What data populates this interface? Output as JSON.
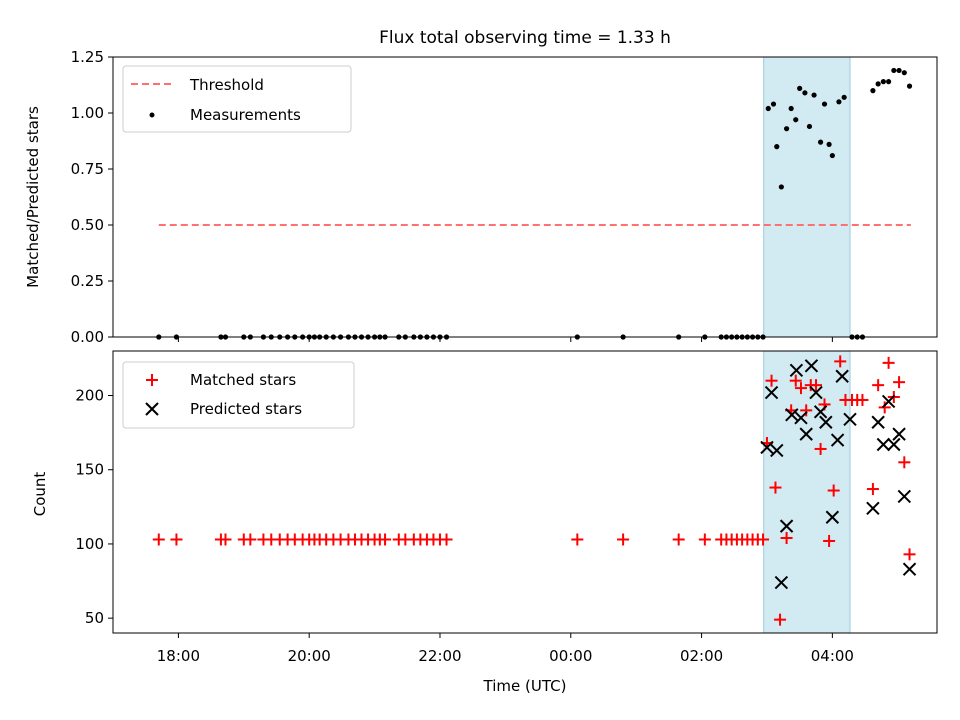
{
  "title": "Flux total observing time = 1.33 h",
  "chart_data": [
    {
      "type": "scatter",
      "title": "Flux total observing time = 1.33 h",
      "ylabel": "Matched/Predicted stars",
      "xlabel": "",
      "x_unit": "hour (UTC)",
      "xlim": [
        17.0,
        29.6
      ],
      "ylim": [
        0,
        1.25
      ],
      "yticks": [
        0.0,
        0.25,
        0.5,
        0.75,
        1.0,
        1.25
      ],
      "ytick_labels": [
        "0.00",
        "0.25",
        "0.50",
        "0.75",
        "1.00",
        "1.25"
      ],
      "grid": false,
      "legend_position": "upper left",
      "legend": [
        "Threshold",
        "Measurements"
      ],
      "shaded_interval": {
        "x": [
          26.95,
          28.27
        ],
        "color": "#add8e6"
      },
      "threshold": {
        "name": "Threshold",
        "y": 0.5,
        "x": [
          17.7,
          29.2
        ],
        "color": "#ff7070",
        "style": "dashed"
      },
      "series": [
        {
          "name": "Measurements",
          "color": "#000000",
          "points": [
            [
              17.7,
              0
            ],
            [
              17.97,
              0
            ],
            [
              18.65,
              0
            ],
            [
              18.72,
              0
            ],
            [
              19.0,
              0
            ],
            [
              19.1,
              0
            ],
            [
              19.3,
              0
            ],
            [
              19.42,
              0
            ],
            [
              19.55,
              0
            ],
            [
              19.67,
              0
            ],
            [
              19.78,
              0
            ],
            [
              19.9,
              0
            ],
            [
              20.0,
              0
            ],
            [
              20.08,
              0
            ],
            [
              20.16,
              0
            ],
            [
              20.26,
              0
            ],
            [
              20.37,
              0
            ],
            [
              20.48,
              0
            ],
            [
              20.6,
              0
            ],
            [
              20.7,
              0
            ],
            [
              20.8,
              0
            ],
            [
              20.9,
              0
            ],
            [
              21.0,
              0
            ],
            [
              21.08,
              0
            ],
            [
              21.16,
              0
            ],
            [
              21.37,
              0
            ],
            [
              21.47,
              0
            ],
            [
              21.6,
              0
            ],
            [
              21.7,
              0
            ],
            [
              21.8,
              0
            ],
            [
              21.9,
              0
            ],
            [
              22.0,
              0
            ],
            [
              22.1,
              0
            ],
            [
              24.1,
              0
            ],
            [
              24.8,
              0
            ],
            [
              25.65,
              0
            ],
            [
              26.05,
              0
            ],
            [
              26.3,
              0
            ],
            [
              26.38,
              0
            ],
            [
              26.46,
              0
            ],
            [
              26.54,
              0
            ],
            [
              26.62,
              0
            ],
            [
              26.7,
              0
            ],
            [
              26.78,
              0
            ],
            [
              26.86,
              0
            ],
            [
              26.94,
              0
            ],
            [
              28.3,
              0
            ],
            [
              28.38,
              0
            ],
            [
              28.46,
              0
            ],
            [
              27.02,
              1.02
            ],
            [
              27.1,
              1.04
            ],
            [
              27.15,
              0.85
            ],
            [
              27.22,
              0.67
            ],
            [
              27.3,
              0.93
            ],
            [
              27.37,
              1.02
            ],
            [
              27.44,
              0.97
            ],
            [
              27.5,
              1.11
            ],
            [
              27.58,
              1.09
            ],
            [
              27.65,
              0.94
            ],
            [
              27.72,
              1.08
            ],
            [
              27.82,
              0.87
            ],
            [
              27.88,
              1.04
            ],
            [
              27.95,
              0.86
            ],
            [
              28.0,
              0.81
            ],
            [
              28.1,
              1.05
            ],
            [
              28.18,
              1.07
            ],
            [
              28.62,
              1.1
            ],
            [
              28.7,
              1.13
            ],
            [
              28.78,
              1.14
            ],
            [
              28.86,
              1.14
            ],
            [
              28.94,
              1.19
            ],
            [
              29.02,
              1.19
            ],
            [
              29.1,
              1.18
            ],
            [
              29.18,
              1.12
            ]
          ]
        }
      ]
    },
    {
      "type": "scatter",
      "title": "",
      "ylabel": "Count",
      "xlabel": "Time (UTC)",
      "x_unit": "hour (UTC)",
      "xlim": [
        17.0,
        29.6
      ],
      "ylim": [
        40,
        230
      ],
      "yticks": [
        50,
        100,
        150,
        200
      ],
      "ytick_labels": [
        "50",
        "100",
        "150",
        "200"
      ],
      "xticks": [
        18,
        20,
        22,
        24,
        26,
        28
      ],
      "xtick_labels": [
        "18:00",
        "20:00",
        "22:00",
        "00:00",
        "02:00",
        "04:00"
      ],
      "grid": false,
      "legend_position": "upper left",
      "legend": [
        "Matched stars",
        "Predicted stars"
      ],
      "shaded_interval": {
        "x": [
          26.95,
          28.27
        ],
        "color": "#add8e6"
      },
      "series": [
        {
          "name": "Matched stars",
          "marker": "plus",
          "color": "#ff0000",
          "points": [
            [
              17.7,
              103
            ],
            [
              17.97,
              103
            ],
            [
              18.65,
              103
            ],
            [
              18.72,
              103
            ],
            [
              19.0,
              103
            ],
            [
              19.1,
              103
            ],
            [
              19.3,
              103
            ],
            [
              19.42,
              103
            ],
            [
              19.55,
              103
            ],
            [
              19.67,
              103
            ],
            [
              19.78,
              103
            ],
            [
              19.9,
              103
            ],
            [
              20.0,
              103
            ],
            [
              20.08,
              103
            ],
            [
              20.16,
              103
            ],
            [
              20.26,
              103
            ],
            [
              20.37,
              103
            ],
            [
              20.48,
              103
            ],
            [
              20.6,
              103
            ],
            [
              20.7,
              103
            ],
            [
              20.8,
              103
            ],
            [
              20.9,
              103
            ],
            [
              21.0,
              103
            ],
            [
              21.08,
              103
            ],
            [
              21.16,
              103
            ],
            [
              21.37,
              103
            ],
            [
              21.47,
              103
            ],
            [
              21.6,
              103
            ],
            [
              21.7,
              103
            ],
            [
              21.8,
              103
            ],
            [
              21.9,
              103
            ],
            [
              22.0,
              103
            ],
            [
              22.1,
              103
            ],
            [
              24.1,
              103
            ],
            [
              24.8,
              103
            ],
            [
              25.65,
              103
            ],
            [
              26.05,
              103
            ],
            [
              26.3,
              103
            ],
            [
              26.38,
              103
            ],
            [
              26.46,
              103
            ],
            [
              26.54,
              103
            ],
            [
              26.62,
              103
            ],
            [
              26.7,
              103
            ],
            [
              26.78,
              103
            ],
            [
              26.86,
              103
            ],
            [
              26.94,
              103
            ],
            [
              27.0,
              168
            ],
            [
              27.07,
              210
            ],
            [
              27.13,
              138
            ],
            [
              27.2,
              49
            ],
            [
              27.3,
              104
            ],
            [
              27.37,
              190
            ],
            [
              27.44,
              210
            ],
            [
              27.52,
              205
            ],
            [
              27.6,
              190
            ],
            [
              27.67,
              207
            ],
            [
              27.75,
              207
            ],
            [
              27.82,
              164
            ],
            [
              27.88,
              194
            ],
            [
              27.95,
              102
            ],
            [
              28.02,
              136
            ],
            [
              28.12,
              223
            ],
            [
              28.2,
              197
            ],
            [
              28.3,
              197
            ],
            [
              28.38,
              197
            ],
            [
              28.46,
              197
            ],
            [
              28.62,
              137
            ],
            [
              28.7,
              207
            ],
            [
              28.8,
              192
            ],
            [
              28.86,
              222
            ],
            [
              28.94,
              199
            ],
            [
              29.02,
              209
            ],
            [
              29.1,
              155
            ],
            [
              29.18,
              93
            ]
          ]
        },
        {
          "name": "Predicted stars",
          "marker": "x",
          "color": "#000000",
          "points": [
            [
              27.0,
              165
            ],
            [
              27.07,
              202
            ],
            [
              27.15,
              163
            ],
            [
              27.22,
              74
            ],
            [
              27.3,
              112
            ],
            [
              27.38,
              187
            ],
            [
              27.45,
              217
            ],
            [
              27.52,
              185
            ],
            [
              27.6,
              174
            ],
            [
              27.68,
              220
            ],
            [
              27.75,
              202
            ],
            [
              27.82,
              189
            ],
            [
              27.9,
              182
            ],
            [
              28.0,
              118
            ],
            [
              28.08,
              170
            ],
            [
              28.15,
              213
            ],
            [
              28.27,
              184
            ],
            [
              28.62,
              124
            ],
            [
              28.7,
              182
            ],
            [
              28.78,
              167
            ],
            [
              28.86,
              196
            ],
            [
              28.94,
              167
            ],
            [
              29.02,
              174
            ],
            [
              29.1,
              132
            ],
            [
              29.18,
              83
            ]
          ]
        }
      ]
    }
  ]
}
